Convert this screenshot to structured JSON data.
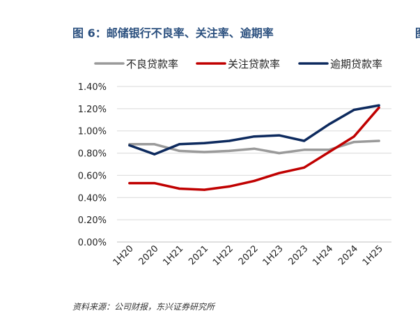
{
  "title": "图 6：邮储银行不良率、关注率、逾期率",
  "edge_mark": "图",
  "source": "资料来源：公司财报，东兴证券研究所",
  "chart_data": {
    "type": "line",
    "title": "",
    "xlabel": "",
    "ylabel": "",
    "categories": [
      "1H20",
      "2020",
      "1H21",
      "2021",
      "1H22",
      "2022",
      "1H23",
      "2023",
      "1H24",
      "2024",
      "1H25"
    ],
    "ylim": [
      0,
      1.4
    ],
    "y_ticks": [
      "0.00%",
      "0.20%",
      "0.40%",
      "0.60%",
      "0.80%",
      "1.00%",
      "1.20%",
      "1.40%"
    ],
    "y_unit": "%",
    "grid": true,
    "legend": "top",
    "series": [
      {
        "name": "不良贷款率",
        "color": "#9a9a9a",
        "values": [
          0.88,
          0.88,
          0.82,
          0.81,
          0.82,
          0.84,
          0.8,
          0.83,
          0.83,
          0.9,
          0.91
        ]
      },
      {
        "name": "关注贷款率",
        "color": "#c00000",
        "values": [
          0.53,
          0.53,
          0.48,
          0.47,
          0.5,
          0.55,
          0.62,
          0.67,
          0.81,
          0.95,
          1.21
        ]
      },
      {
        "name": "逾期贷款率",
        "color": "#0d2a5e",
        "values": [
          0.87,
          0.79,
          0.88,
          0.89,
          0.91,
          0.95,
          0.96,
          0.91,
          1.06,
          1.19,
          1.23
        ]
      }
    ]
  }
}
